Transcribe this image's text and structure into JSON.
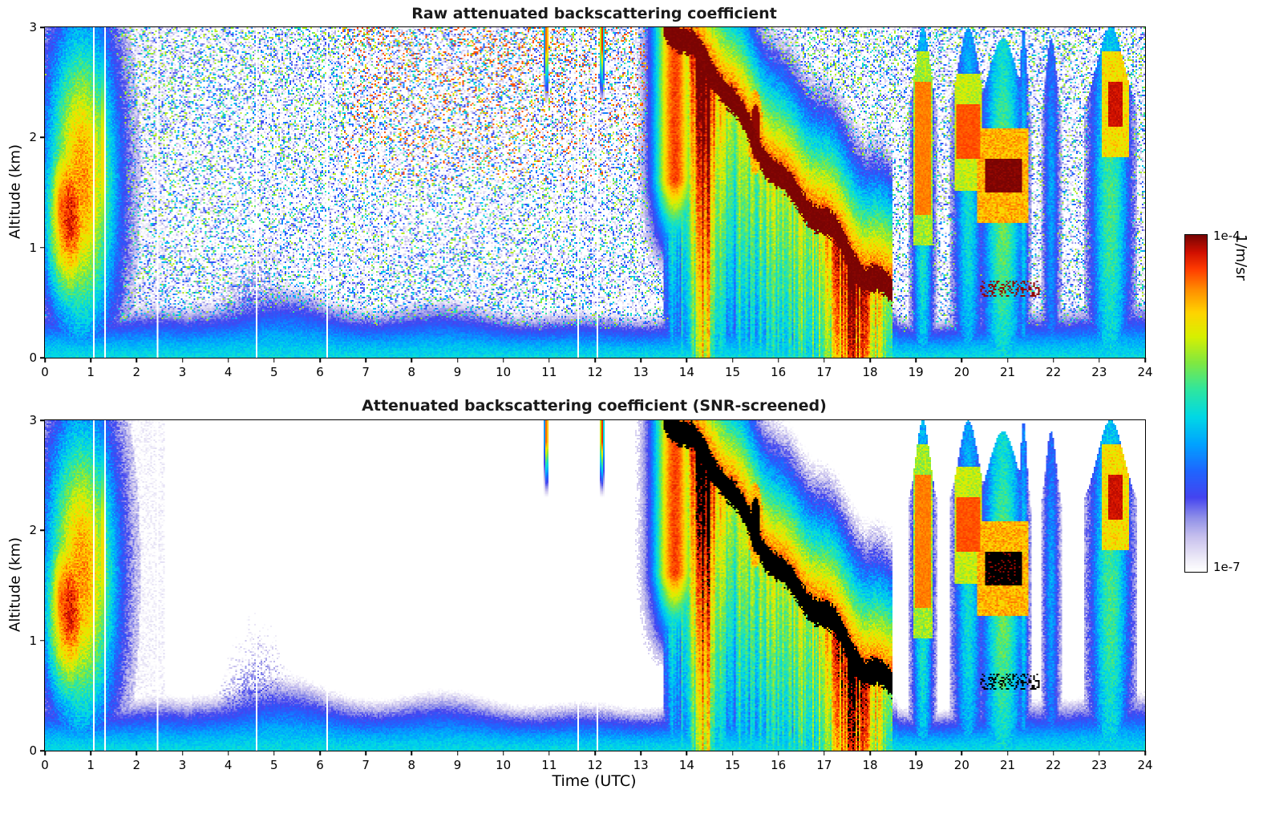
{
  "page": {
    "background": "#ffffff",
    "text_color": "#000000"
  },
  "chart_data": {
    "type": "heatmap",
    "xlabel": "Time (UTC)",
    "x_range": [
      0,
      24
    ],
    "y_range": [
      0,
      3
    ],
    "xticks": [
      0,
      1,
      2,
      3,
      4,
      5,
      6,
      7,
      8,
      9,
      10,
      11,
      12,
      13,
      14,
      15,
      16,
      17,
      18,
      19,
      20,
      21,
      22,
      23,
      24
    ],
    "yticks": [
      0,
      1,
      2,
      3
    ],
    "panels": [
      {
        "id": "raw",
        "title": "Raw attenuated backscattering coefficient",
        "ylabel": "Altitude (km)",
        "noise": true,
        "screened": false
      },
      {
        "id": "screened",
        "title": "Attenuated backscattering coefficient (SNR-screened)",
        "ylabel": "Altitude (km)",
        "noise": false,
        "screened": true
      }
    ],
    "colorbar": {
      "unit": "1/m/sr",
      "max_label": "1e-4",
      "min_label": "1e-7",
      "scale": "log10",
      "vmin_log10": -7,
      "vmax_log10": -4
    },
    "colormap_stops": [
      [
        0.0,
        "#ffffff"
      ],
      [
        0.04,
        "#ece9f7"
      ],
      [
        0.1,
        "#c9c2ee"
      ],
      [
        0.16,
        "#8f8fe8"
      ],
      [
        0.22,
        "#4444f0"
      ],
      [
        0.3,
        "#1e66ff"
      ],
      [
        0.38,
        "#00a4ff"
      ],
      [
        0.46,
        "#00d8e6"
      ],
      [
        0.54,
        "#2ee6a0"
      ],
      [
        0.62,
        "#7fe842"
      ],
      [
        0.7,
        "#d8f000"
      ],
      [
        0.77,
        "#ffd400"
      ],
      [
        0.84,
        "#ff8c00"
      ],
      [
        0.9,
        "#ff3c00"
      ],
      [
        0.95,
        "#d01000"
      ],
      [
        1.0,
        "#7a0403"
      ]
    ],
    "screened_overflow_black": -4.045,
    "gap_times": [
      1.05,
      1.3,
      2.45,
      4.62,
      6.15,
      11.62,
      12.05
    ],
    "features": {
      "boundary_layer": {
        "base_height": 0.48,
        "surface_log10": -5.6,
        "vertical_decay": 1.5
      },
      "bl_speckle_plume": {
        "t_center": 4.6,
        "t_sigma": 1.0,
        "max_height": 1.3
      },
      "morning_plume": {
        "t_center": 0.55,
        "t_sigma": 0.6,
        "z_center": 1.3,
        "z_sigma": 1.0,
        "peak_log10": -4.2,
        "halo_t_center": 0.8,
        "halo_t_sigma": 0.85
      },
      "morning_streak": {
        "t_center": 1.25,
        "t_sigma": 0.12
      },
      "preband_anvil": {
        "t_center": 13.75,
        "t_sigma": 0.5
      },
      "descending_band": {
        "t_start": 13.6,
        "t_slope_end": 17.9,
        "t_end": 18.5,
        "z_start": 3.05,
        "z_end": 0.68,
        "core_log10": -4.0,
        "core_halfwidth": 0.09
      },
      "precip_boosts": [
        {
          "t_center": 14.35,
          "t_sigma": 0.3,
          "amount": 1.3
        },
        {
          "t_center": 17.6,
          "t_sigma": 0.5,
          "amount": 1.0
        }
      ],
      "cloud_puff": {
        "t_center": 15.5,
        "z_center": 2.05,
        "core_log10": -4.04
      },
      "evening_columns": [
        {
          "t": 19.15,
          "w": 0.22,
          "top": 3.0,
          "body": -5.6,
          "core_z": [
            1.3,
            2.5
          ],
          "core_v": -4.45
        },
        {
          "t": 20.15,
          "w": 0.3,
          "top": 3.0,
          "body": -5.7,
          "core_z": [
            1.8,
            2.3
          ],
          "core_v": -4.35
        },
        {
          "t": 20.9,
          "w": 0.45,
          "top": 2.9,
          "body": -5.4,
          "core_z": [
            1.5,
            1.8
          ],
          "core_v": -4.0,
          "core_t": [
            20.5,
            21.3
          ]
        },
        {
          "t": 21.35,
          "w": 0.1,
          "top": 3.0,
          "body": -5.8
        },
        {
          "t": 21.95,
          "w": 0.17,
          "top": 2.9,
          "body": -6.0
        },
        {
          "t": 23.25,
          "w": 0.42,
          "top": 3.0,
          "body": -5.5,
          "core_z": [
            2.1,
            2.5
          ],
          "core_v": -4.15,
          "core_t": [
            23.2,
            23.5
          ]
        }
      ],
      "low_cloud_dots": {
        "t_range": [
          20.4,
          21.7
        ],
        "z_range": [
          0.55,
          0.7
        ],
        "log10": -4.04
      },
      "high_streaks": [
        {
          "t_center": 10.95
        },
        {
          "t_center": 12.15
        }
      ]
    }
  }
}
